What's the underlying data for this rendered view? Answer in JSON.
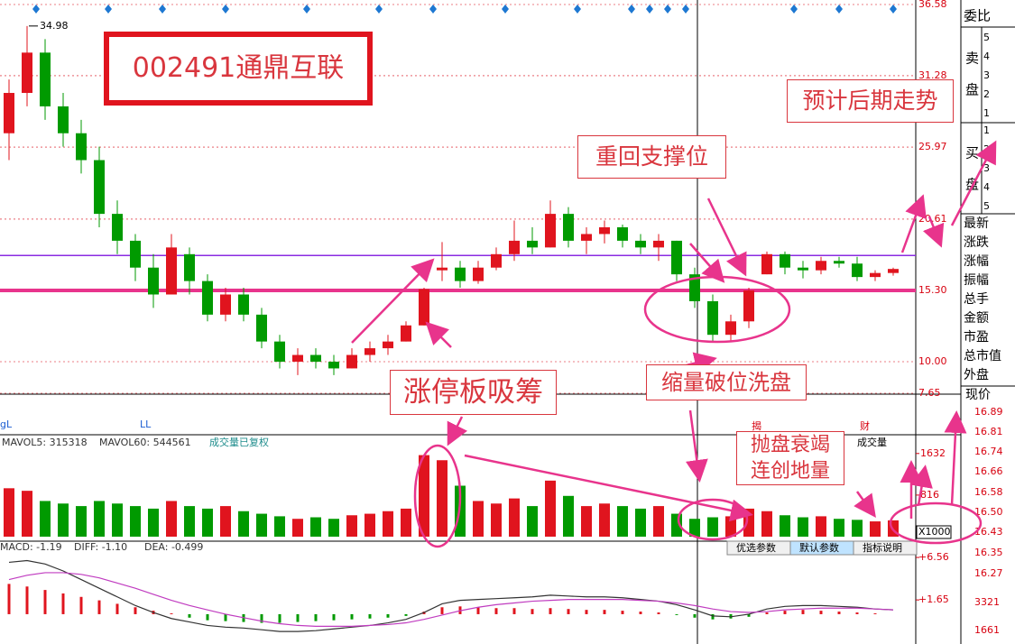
{
  "header": {
    "stock_label": "002491通鼎互联",
    "corner_labels": [
      "gL",
      "LL"
    ],
    "icons": [
      "揭",
      "财"
    ]
  },
  "annotations": {
    "forecast": "预计后期走势",
    "support": "重回支撑位",
    "limit_up": "涨停板吸筹",
    "shakeout": "缩量破位洗盘",
    "exhaust": [
      "抛盘衰竭",
      "连创地量"
    ]
  },
  "chart_data": [
    {
      "type": "candlestick",
      "open": [
        27,
        30,
        33,
        29,
        27,
        25,
        21,
        19,
        17,
        15,
        18,
        16,
        13.5,
        15,
        13.5,
        11.5,
        10,
        10.5,
        10,
        9.5,
        10.5,
        11,
        11.5,
        12.7,
        16.8,
        17,
        16,
        17,
        18,
        19,
        18.5,
        21,
        19,
        19.5,
        20,
        19,
        18.5,
        19,
        16.5,
        14.5,
        12,
        13,
        16.5,
        18,
        17,
        16.8,
        17.5,
        17.3,
        16.3,
        16.6
      ],
      "high": [
        31,
        34.98,
        34,
        30,
        28,
        26,
        22,
        19.5,
        18,
        19.5,
        18.5,
        16.5,
        15.5,
        15.5,
        14,
        12,
        11,
        11,
        10.5,
        11,
        11.5,
        12,
        13,
        15.5,
        18.9,
        17.5,
        17.5,
        18.5,
        20.5,
        20,
        22,
        21.5,
        20,
        20.5,
        20.2,
        19.5,
        19.5,
        19,
        17,
        15,
        13.5,
        15.5,
        18.2,
        18.2,
        17.5,
        17.8,
        17.8,
        17.8,
        16.8,
        17
      ],
      "low": [
        25,
        29,
        28,
        26,
        24,
        20,
        18,
        16,
        14,
        15,
        15,
        13,
        13,
        13,
        11,
        9.5,
        9,
        9.5,
        9,
        9.5,
        10,
        10.5,
        11.5,
        12.7,
        16,
        15.5,
        15.8,
        16.8,
        17.5,
        18,
        18.5,
        18.5,
        18,
        18.8,
        18.5,
        18,
        17.5,
        16,
        14,
        11.5,
        11.5,
        12.5,
        16.5,
        16.5,
        16.2,
        16.5,
        17,
        16,
        16,
        16.4
      ],
      "close": [
        30,
        33,
        29,
        27,
        25,
        21,
        19,
        17,
        15,
        18.5,
        16,
        13.5,
        15,
        13.5,
        11.5,
        10,
        10.5,
        10,
        9.5,
        10.5,
        11,
        11.5,
        12.7,
        15.4,
        17,
        16,
        17,
        18,
        19,
        18.5,
        21,
        19,
        19.5,
        20,
        19,
        18.5,
        19,
        16.5,
        14.5,
        12,
        13,
        15.3,
        18,
        17,
        16.8,
        17.5,
        17.3,
        16.3,
        16.6,
        16.9
      ],
      "colors": {
        "up": "#e0141e",
        "down": "#009a00"
      },
      "max_label": "34.98",
      "ylim": [
        7.65,
        36.58
      ],
      "yticks": [
        7.65,
        {
          "value": 10,
          "label": "10.00"
        },
        {
          "value": 15.3,
          "label": "15.30"
        },
        20.61,
        25.97,
        31.28,
        36.58
      ],
      "grid": true,
      "reference_lines": [
        {
          "value": 17.9,
          "color": "#8a2be2"
        },
        {
          "value": 15.3,
          "color": "#e8348c"
        }
      ]
    },
    {
      "type": "bar",
      "legend": [
        "MAVOL5: 315318",
        "MAVOL60: 544561",
        "成交量已复权"
      ],
      "values": [
        950,
        900,
        700,
        650,
        600,
        700,
        650,
        600,
        550,
        700,
        600,
        550,
        600,
        500,
        450,
        400,
        350,
        380,
        350,
        420,
        450,
        500,
        550,
        1600,
        1500,
        1000,
        700,
        650,
        750,
        600,
        1100,
        800,
        600,
        650,
        600,
        550,
        600,
        450,
        350,
        380,
        400,
        550,
        500,
        420,
        380,
        400,
        350,
        330,
        300,
        320
      ],
      "ylim": [
        0,
        2000
      ],
      "yticks": [
        816,
        1632
      ],
      "unit_label": "X1000",
      "selector": "成交量",
      "buttons": [
        "优选参数",
        "默认参数",
        "指标说明"
      ]
    },
    {
      "type": "macd",
      "legend": [
        "MACD: -1.19",
        "DIFF: -1.10",
        "DEA: -0.499"
      ],
      "histogram": [
        3.5,
        3.2,
        2.8,
        2.4,
        2.0,
        1.6,
        1.2,
        0.8,
        0.4,
        0.1,
        -0.4,
        -0.7,
        -0.8,
        -0.9,
        -1.0,
        -1.0,
        -0.9,
        -0.8,
        -0.7,
        -0.6,
        -0.5,
        -0.4,
        -0.2,
        0.3,
        0.8,
        0.9,
        0.8,
        0.7,
        0.7,
        0.6,
        0.7,
        0.6,
        0.5,
        0.5,
        0.4,
        0.3,
        0.2,
        -0.1,
        -0.4,
        -0.6,
        -0.5,
        -0.3,
        0.2,
        0.4,
        0.5,
        0.4,
        0.3,
        0.2,
        0.1,
        0.0
      ],
      "series": [
        {
          "color": "#333333",
          "values": [
            6.0,
            6.2,
            5.8,
            5.0,
            4.0,
            3.0,
            2.0,
            1.0,
            0.2,
            -0.5,
            -0.9,
            -1.3,
            -1.5,
            -1.6,
            -1.8,
            -2.0,
            -2.0,
            -1.9,
            -1.7,
            -1.5,
            -1.3,
            -1.0,
            -0.6,
            0.2,
            1.2,
            1.6,
            1.7,
            1.8,
            1.9,
            2.0,
            2.2,
            2.1,
            2.0,
            2.0,
            1.9,
            1.7,
            1.5,
            1.1,
            0.5,
            -0.2,
            -0.3,
            0.0,
            0.6,
            0.9,
            1.0,
            1.0,
            0.9,
            0.8,
            0.6,
            0.5
          ]
        },
        {
          "color": "#c03cc0",
          "values": [
            4.0,
            4.5,
            4.8,
            4.8,
            4.6,
            4.2,
            3.6,
            3.0,
            2.3,
            1.6,
            1.0,
            0.5,
            0.0,
            -0.4,
            -0.8,
            -1.1,
            -1.3,
            -1.4,
            -1.4,
            -1.4,
            -1.3,
            -1.2,
            -1.0,
            -0.6,
            -0.1,
            0.4,
            0.8,
            1.1,
            1.3,
            1.5,
            1.6,
            1.7,
            1.7,
            1.7,
            1.7,
            1.6,
            1.5,
            1.3,
            1.0,
            0.6,
            0.3,
            0.2,
            0.3,
            0.5,
            0.6,
            0.7,
            0.7,
            0.7,
            0.6,
            0.5
          ]
        }
      ],
      "ylim": [
        -3.03,
        7.92
      ],
      "yticks": [
        {
          "value": 6.56,
          "label": "+6.56"
        },
        {
          "value": 1.65,
          "label": "+1.65"
        }
      ]
    }
  ],
  "side_panel": {
    "ratio": "委比",
    "sell_label": [
      "卖",
      "盘"
    ],
    "sell_levels": [
      "5",
      "4",
      "3",
      "2",
      "1"
    ],
    "buy_label": [
      "买",
      "盘"
    ],
    "buy_levels": [
      "1",
      "2",
      "3",
      "4",
      "5"
    ],
    "fields": [
      "最新",
      "涨跌",
      "涨幅",
      "振幅",
      "总手",
      "金额",
      "市盈",
      "总市值",
      "外盘"
    ],
    "price_label": "现价",
    "ladder": [
      "16.89",
      "16.81",
      "16.74",
      "16.66",
      "16.58",
      "16.50",
      "16.43",
      "16.35",
      "16.27",
      "3321",
      "1661"
    ]
  }
}
